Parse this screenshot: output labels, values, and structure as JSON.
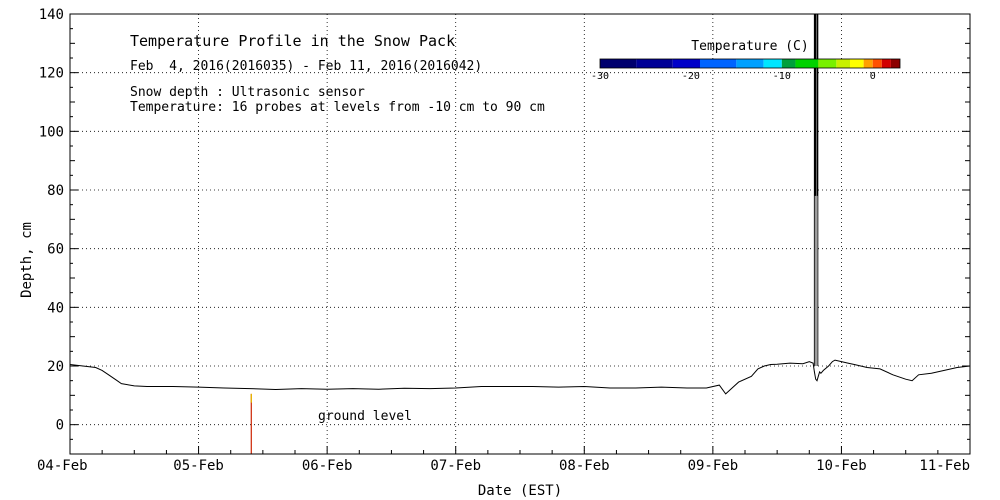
{
  "chart_data": {
    "type": "line",
    "title": "Temperature Profile in the Snow Pack",
    "subtitle": "Feb  4, 2016(2016035) - Feb 11, 2016(2016042)",
    "notes": [
      "Snow depth : Ultrasonic sensor",
      "Temperature: 16 probes at levels from -10 cm to 90 cm"
    ],
    "xlabel": "Date (EST)",
    "ylabel": "Depth, cm",
    "x_unit": "days",
    "x_ticks": [
      {
        "value": 0,
        "label": "04-Feb"
      },
      {
        "value": 1,
        "label": "05-Feb"
      },
      {
        "value": 2,
        "label": "06-Feb"
      },
      {
        "value": 3,
        "label": "07-Feb"
      },
      {
        "value": 4,
        "label": "08-Feb"
      },
      {
        "value": 5,
        "label": "09-Feb"
      },
      {
        "value": 6,
        "label": "10-Feb"
      },
      {
        "value": 7,
        "label": "11-Feb"
      }
    ],
    "xlim": [
      0,
      7
    ],
    "ylim": [
      -10,
      140
    ],
    "y_ticks": [
      0,
      20,
      40,
      60,
      80,
      100,
      120,
      140
    ],
    "grid": true,
    "ground_label": "ground level",
    "colorbar": {
      "title": "Temperature (C)",
      "range": [
        -30,
        3
      ],
      "ticks": [
        -30,
        -20,
        -10,
        0
      ],
      "tick_labels": [
        "-30",
        "-20",
        "-10",
        "0"
      ],
      "bands": [
        {
          "from": -30,
          "to": -26,
          "color": "#00006e"
        },
        {
          "from": -26,
          "to": -22,
          "color": "#000096"
        },
        {
          "from": -22,
          "to": -19,
          "color": "#0000c8"
        },
        {
          "from": -19,
          "to": -15,
          "color": "#0064ff"
        },
        {
          "from": -15,
          "to": -12,
          "color": "#00a0ff"
        },
        {
          "from": -12,
          "to": -10,
          "color": "#00e6ff"
        },
        {
          "from": -10,
          "to": -8.5,
          "color": "#00a03c"
        },
        {
          "from": -8.5,
          "to": -6,
          "color": "#00d200"
        },
        {
          "from": -6,
          "to": -4,
          "color": "#78f000"
        },
        {
          "from": -4,
          "to": -2.5,
          "color": "#c8f000"
        },
        {
          "from": -2.5,
          "to": -1,
          "color": "#ffff00"
        },
        {
          "from": -1,
          "to": 0,
          "color": "#ffa000"
        },
        {
          "from": 0,
          "to": 1,
          "color": "#ff5000"
        },
        {
          "from": 1,
          "to": 2,
          "color": "#d20000"
        },
        {
          "from": 2,
          "to": 3,
          "color": "#8c0000"
        }
      ]
    },
    "series": [
      {
        "color": "#000000",
        "x": [
          0,
          0.1,
          0.2,
          0.25,
          0.3,
          0.35,
          0.4,
          0.5,
          0.6,
          0.8,
          1.0,
          1.2,
          1.4,
          1.6,
          1.8,
          2.0,
          2.2,
          2.4,
          2.6,
          2.8,
          3.0,
          3.2,
          3.4,
          3.6,
          3.8,
          4.0,
          4.2,
          4.4,
          4.6,
          4.8,
          4.95,
          5.05,
          5.1,
          5.15,
          5.2,
          5.3,
          5.35,
          5.4,
          5.45,
          5.5,
          5.6,
          5.7,
          5.75,
          5.78,
          5.79,
          5.8,
          5.81,
          5.82,
          5.83,
          5.84,
          5.86,
          5.9,
          5.93,
          5.95,
          6.0,
          6.05,
          6.1,
          6.2,
          6.3,
          6.4,
          6.5,
          6.55,
          6.6,
          6.7,
          6.8,
          6.9,
          7.0
        ],
        "y": [
          20.5,
          20,
          19.5,
          18.5,
          17,
          15.5,
          14,
          13.2,
          13,
          13,
          12.8,
          12.5,
          12.3,
          12,
          12.3,
          12.1,
          12.3,
          12.1,
          12.4,
          12.3,
          12.5,
          13,
          13,
          13,
          12.8,
          13,
          12.5,
          12.5,
          12.8,
          12.5,
          12.5,
          13.5,
          10.5,
          12.5,
          14.5,
          16.5,
          19,
          20,
          20.5,
          20.6,
          21,
          20.8,
          21.5,
          21,
          18,
          15.5,
          15,
          16.5,
          18,
          17.5,
          18.5,
          20,
          21.5,
          22,
          21.5,
          21,
          20.5,
          19.5,
          19,
          17,
          15.5,
          15,
          17,
          17.5,
          18.5,
          19.5,
          20
        ]
      }
    ]
  }
}
